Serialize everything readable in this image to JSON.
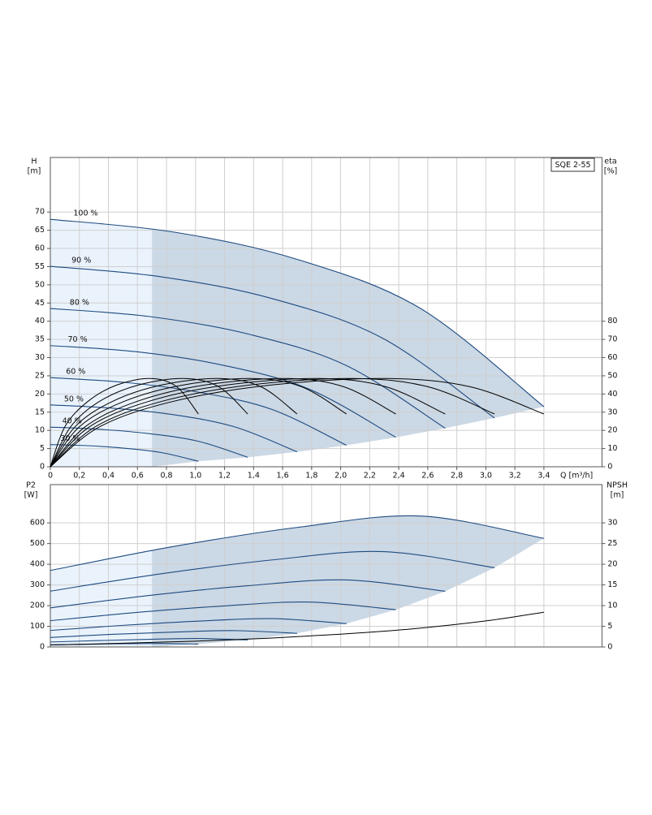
{
  "chart_data": [
    {
      "type": "line",
      "title": "SQE 2-55",
      "xlabel": "Q [m³/h]",
      "ylabel": "H",
      "ylabel_unit": "[m]",
      "y2label": "eta",
      "y2label_unit": "[%]",
      "xlim": [
        0,
        3.8
      ],
      "ylim": [
        0,
        85
      ],
      "y2lim": [
        0,
        170
      ],
      "min_q": 0.7,
      "grid": true,
      "xticks": [
        0,
        {
          "value": 0.2,
          "label": "0,2"
        },
        {
          "value": 0.4,
          "label": "0,4"
        },
        {
          "value": 0.6,
          "label": "0,6"
        },
        {
          "value": 0.8,
          "label": "0,8"
        },
        {
          "value": 1.0,
          "label": "1,0"
        },
        {
          "value": 1.2,
          "label": "1,2"
        },
        {
          "value": 1.4,
          "label": "1,4"
        },
        {
          "value": 1.6,
          "label": "1,6"
        },
        {
          "value": 1.8,
          "label": "1,8"
        },
        {
          "value": 2.0,
          "label": "2,0"
        },
        {
          "value": 2.2,
          "label": "2,2"
        },
        {
          "value": 2.4,
          "label": "2,4"
        },
        {
          "value": 2.6,
          "label": "2,6"
        },
        {
          "value": 2.8,
          "label": "2,8"
        },
        {
          "value": 3.0,
          "label": "3,0"
        },
        {
          "value": 3.2,
          "label": "3,2"
        },
        {
          "value": 3.4,
          "label": "3,4"
        }
      ],
      "yticks": [
        0,
        5,
        10,
        15,
        20,
        25,
        30,
        35,
        40,
        45,
        50,
        55,
        60,
        65,
        70
      ],
      "y2ticks": [
        0,
        10,
        20,
        30,
        40,
        50,
        60,
        70,
        80
      ],
      "series": [
        {
          "name": "100 %",
          "color": "#1d4a80",
          "x": [
            0,
            0.85,
            1.7,
            2.55,
            3.4
          ],
          "values": [
            68,
            64.5,
            57,
            43.5,
            16.5
          ]
        },
        {
          "name": "90 %",
          "color": "#1d4a80",
          "x": [
            0,
            0.765,
            1.53,
            2.295,
            3.06
          ],
          "values": [
            55.1,
            52.2,
            46.2,
            35.2,
            13.4
          ]
        },
        {
          "name": "80 %",
          "color": "#1d4a80",
          "x": [
            0,
            0.68,
            1.36,
            2.04,
            2.72
          ],
          "values": [
            43.5,
            41.3,
            36.5,
            27.8,
            10.6
          ]
        },
        {
          "name": "70 %",
          "color": "#1d4a80",
          "x": [
            0,
            0.595,
            1.19,
            1.785,
            2.38
          ],
          "values": [
            33.3,
            31.6,
            27.9,
            21.3,
            8.1
          ]
        },
        {
          "name": "60 %",
          "color": "#1d4a80",
          "x": [
            0,
            0.51,
            1.02,
            1.53,
            2.04
          ],
          "values": [
            24.5,
            23.2,
            20.5,
            15.7,
            5.9
          ]
        },
        {
          "name": "50 %",
          "color": "#1d4a80",
          "x": [
            0,
            0.425,
            0.85,
            1.275,
            1.7
          ],
          "values": [
            17,
            16.1,
            14.3,
            10.9,
            4.1
          ]
        },
        {
          "name": "40 %",
          "color": "#1d4a80",
          "x": [
            0,
            0.34,
            0.68,
            1.02,
            1.36
          ],
          "values": [
            10.9,
            10.3,
            9.1,
            7,
            2.6
          ]
        },
        {
          "name": "30 %",
          "color": "#1d4a80",
          "x": [
            0,
            0.255,
            0.51,
            0.765,
            1.02
          ],
          "values": [
            6.1,
            5.8,
            5.1,
            3.9,
            1.5
          ]
        },
        {
          "color": "#000000",
          "axis": "y2",
          "x": [
            0,
            0.34,
            0.85,
            1.53,
            2.31,
            2.89,
            3.4
          ],
          "values": [
            0,
            22,
            36,
            45,
            48.5,
            44,
            29
          ]
        },
        {
          "color": "#000000",
          "axis": "y2",
          "x": [
            0,
            0.31,
            0.77,
            1.38,
            2.08,
            2.6,
            3.06
          ],
          "values": [
            0,
            22,
            36,
            45,
            48.5,
            44,
            29
          ]
        },
        {
          "color": "#000000",
          "axis": "y2",
          "x": [
            0,
            0.27,
            0.68,
            1.22,
            1.85,
            2.31,
            2.72
          ],
          "values": [
            0,
            22,
            36,
            45,
            48.5,
            44,
            29
          ]
        },
        {
          "color": "#000000",
          "axis": "y2",
          "x": [
            0,
            0.24,
            0.6,
            1.07,
            1.62,
            2.02,
            2.38
          ],
          "values": [
            0,
            22,
            36,
            45,
            48.5,
            44,
            29
          ]
        },
        {
          "color": "#000000",
          "axis": "y2",
          "x": [
            0,
            0.2,
            0.51,
            0.92,
            1.39,
            1.73,
            2.04
          ],
          "values": [
            0,
            22,
            36,
            45,
            48.5,
            44,
            29
          ]
        },
        {
          "color": "#000000",
          "axis": "y2",
          "x": [
            0,
            0.17,
            0.43,
            0.77,
            1.16,
            1.45,
            1.7
          ],
          "values": [
            0,
            22,
            36,
            45,
            48.5,
            44,
            29
          ]
        },
        {
          "color": "#000000",
          "axis": "y2",
          "x": [
            0,
            0.14,
            0.34,
            0.61,
            0.92,
            1.16,
            1.36
          ],
          "values": [
            0,
            22,
            36,
            45,
            48.5,
            44,
            29
          ]
        },
        {
          "color": "#000000",
          "axis": "y2",
          "x": [
            0,
            0.1,
            0.26,
            0.46,
            0.69,
            0.87,
            1.02
          ],
          "values": [
            0,
            22,
            36,
            45,
            48.5,
            44,
            29
          ]
        }
      ]
    },
    {
      "type": "line",
      "ylabel": "P2",
      "ylabel_unit": "[W]",
      "y2label": "NPSH",
      "y2label_unit": "[m]",
      "xlim": [
        0,
        3.8
      ],
      "ylim": [
        0,
        785
      ],
      "y2lim": [
        0,
        39.25
      ],
      "min_q": 0.7,
      "grid": true,
      "yticks": [
        0,
        100,
        200,
        300,
        400,
        500,
        600
      ],
      "y2ticks": [
        0,
        5,
        10,
        15,
        20,
        25,
        30
      ],
      "series": [
        {
          "color": "#1d4a80",
          "x": [
            0,
            0.85,
            1.7,
            2.55,
            3.4
          ],
          "values": [
            370,
            486,
            578,
            633,
            525
          ]
        },
        {
          "color": "#1d4a80",
          "x": [
            0,
            0.765,
            1.53,
            2.295,
            3.06
          ],
          "values": [
            270,
            354,
            421,
            461,
            383
          ]
        },
        {
          "color": "#1d4a80",
          "x": [
            0,
            0.68,
            1.36,
            2.04,
            2.72
          ],
          "values": [
            189,
            249,
            296,
            324,
            269
          ]
        },
        {
          "color": "#1d4a80",
          "x": [
            0,
            0.595,
            1.19,
            1.785,
            2.38
          ],
          "values": [
            127,
            167,
            198,
            217,
            180
          ]
        },
        {
          "color": "#1d4a80",
          "x": [
            0,
            0.51,
            1.02,
            1.53,
            2.04
          ],
          "values": [
            80,
            105,
            125,
            137,
            113
          ]
        },
        {
          "color": "#1d4a80",
          "x": [
            0,
            0.425,
            0.85,
            1.275,
            1.7
          ],
          "values": [
            46,
            61,
            72,
            79,
            66
          ]
        },
        {
          "color": "#1d4a80",
          "x": [
            0,
            0.34,
            0.68,
            1.02,
            1.36
          ],
          "values": [
            24,
            31,
            37,
            41,
            34
          ]
        },
        {
          "color": "#1d4a80",
          "x": [
            0,
            0.255,
            0.51,
            0.765,
            1.02
          ],
          "values": [
            10,
            13,
            16,
            17,
            14
          ]
        },
        {
          "color": "#000000",
          "axis": "y2",
          "x": [
            0,
            0.5,
            1,
            1.5,
            2,
            2.5,
            3,
            3.4
          ],
          "values": [
            0.5,
            0.9,
            1.4,
            2.1,
            3.1,
            4.4,
            6.3,
            8.4
          ]
        }
      ]
    }
  ]
}
